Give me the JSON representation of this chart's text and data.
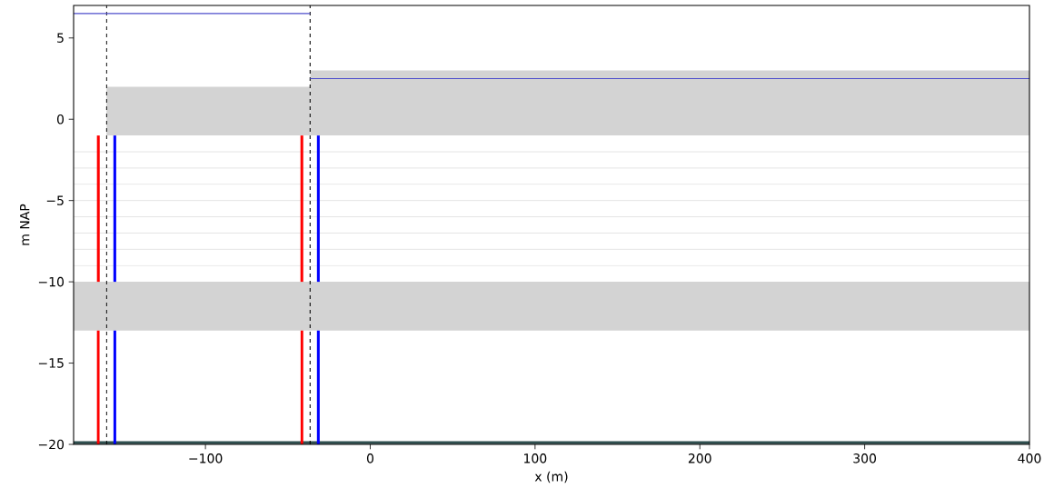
{
  "chart_data": {
    "type": "line",
    "xlabel": "x (m)",
    "ylabel": "m NAP",
    "xlim": [
      -180,
      400
    ],
    "ylim": [
      -20,
      7
    ],
    "xticks": [
      {
        "value": -100,
        "label": "−100"
      },
      0,
      100,
      200,
      300,
      400
    ],
    "yticks": [
      {
        "value": -20,
        "label": "−20"
      },
      {
        "value": -15,
        "label": "−15"
      },
      {
        "value": -10,
        "label": "−10"
      },
      {
        "value": -5,
        "label": "−5"
      },
      0,
      5
    ],
    "grid": false,
    "series": [
      {
        "color": "#d3d3d3",
        "x": [
          -160,
          -36.5
        ],
        "values": [
          null,
          null
        ],
        "lower": [
          -1,
          -1
        ],
        "upper": [
          2,
          2
        ]
      },
      {
        "color": "#d3d3d3",
        "x": [
          -36.5,
          400
        ],
        "values": [
          null,
          null
        ],
        "lower": [
          -1,
          -1
        ],
        "upper": [
          3,
          3
        ]
      },
      {
        "color": "#4c4ccc",
        "x": [
          -180,
          -36.5
        ],
        "values": [
          6.5,
          6.5
        ]
      },
      {
        "color": "#4c4ccc",
        "x": [
          -36.5,
          400
        ],
        "values": [
          2.5,
          2.5
        ]
      },
      {
        "color": "#ff0000",
        "x": [
          -165,
          -165
        ],
        "values": [
          -1,
          -10
        ]
      },
      {
        "color": "#ff0000",
        "x": [
          -165,
          -165
        ],
        "values": [
          -13,
          -20
        ]
      },
      {
        "color": "#0000ff",
        "x": [
          -155,
          -155
        ],
        "values": [
          -1,
          -10
        ]
      },
      {
        "color": "#0000ff",
        "x": [
          -155,
          -155
        ],
        "values": [
          -13,
          -20
        ]
      },
      {
        "color": "#ff0000",
        "x": [
          -41.5,
          -41.5
        ],
        "values": [
          -1,
          -10
        ]
      },
      {
        "color": "#ff0000",
        "x": [
          -41.5,
          -41.5
        ],
        "values": [
          -13,
          -20
        ]
      },
      {
        "color": "#0000ff",
        "x": [
          -31.5,
          -31.5
        ],
        "values": [
          -1,
          -10
        ]
      },
      {
        "color": "#0000ff",
        "x": [
          -31.5,
          -31.5
        ],
        "values": [
          -13,
          -20
        ]
      }
    ],
    "bands": [
      {
        "axis": "y",
        "from": -13,
        "to": -10,
        "color": "#d3d3d3"
      }
    ],
    "ref_lines": [
      {
        "axis": "y",
        "value": -2,
        "color": "#dddddd"
      },
      {
        "axis": "y",
        "value": -3,
        "color": "#dddddd"
      },
      {
        "axis": "y",
        "value": -4,
        "color": "#dddddd"
      },
      {
        "axis": "y",
        "value": -5,
        "color": "#dddddd"
      },
      {
        "axis": "y",
        "value": -6,
        "color": "#dddddd"
      },
      {
        "axis": "y",
        "value": -7,
        "color": "#dddddd"
      },
      {
        "axis": "y",
        "value": -8,
        "color": "#dddddd"
      },
      {
        "axis": "y",
        "value": -9,
        "color": "#dddddd"
      },
      {
        "axis": "y",
        "value": -19.9,
        "color": "#2f4f4f"
      },
      {
        "axis": "x",
        "value": -160,
        "color": "#000000",
        "line_style": "dashed"
      },
      {
        "axis": "x",
        "value": -36.5,
        "color": "#000000",
        "line_style": "dashed"
      }
    ]
  }
}
